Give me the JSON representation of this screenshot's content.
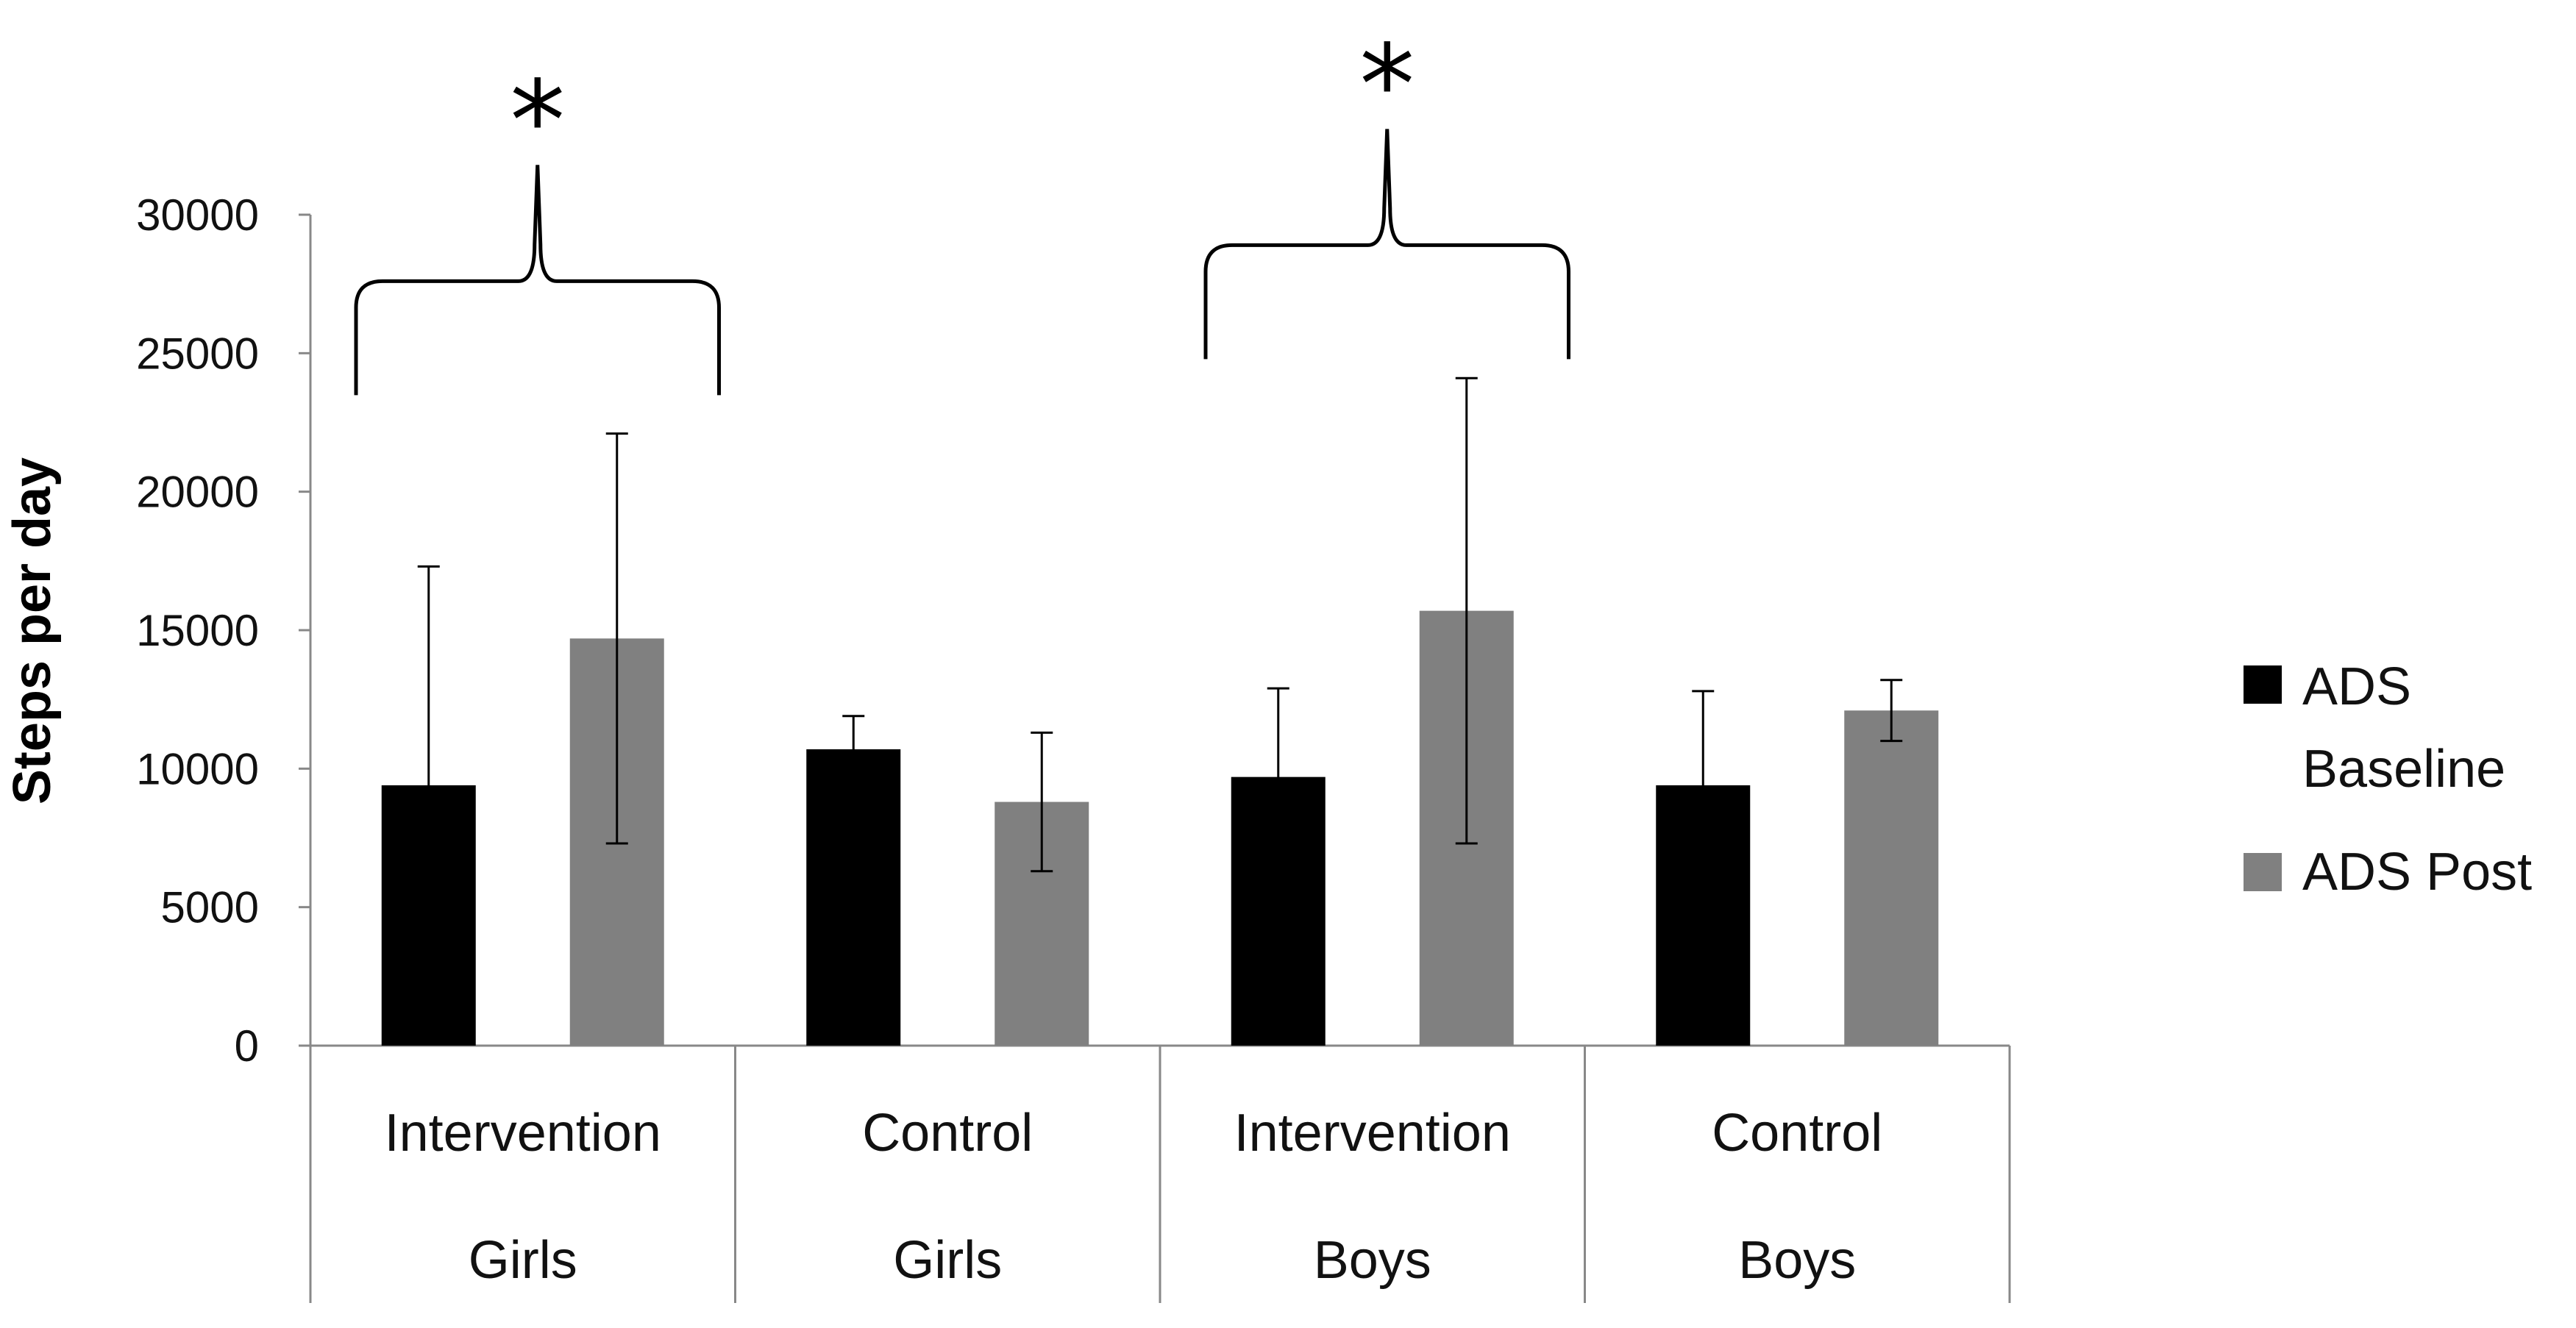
{
  "chart_data": {
    "type": "bar",
    "title": "",
    "xlabel": "",
    "ylabel": "Steps per day",
    "ylim": [
      0,
      30000
    ],
    "yticks": [
      0,
      5000,
      10000,
      15000,
      20000,
      25000,
      30000
    ],
    "categories": [
      {
        "group": "Intervention",
        "sub": "Girls"
      },
      {
        "group": "Control",
        "sub": "Girls"
      },
      {
        "group": "Intervention",
        "sub": "Boys"
      },
      {
        "group": "Control",
        "sub": "Boys"
      }
    ],
    "series": [
      {
        "name": "ADS Baseline",
        "color": "#000000",
        "values": [
          9400,
          10700,
          9700,
          9400
        ],
        "errors": [
          7900,
          1200,
          3200,
          3400
        ]
      },
      {
        "name": "ADS Post",
        "color": "#808080",
        "values": [
          14700,
          8800,
          15700,
          12100
        ],
        "errors": [
          7400,
          2500,
          8400,
          1100
        ]
      }
    ],
    "annotations": [
      {
        "text": "*",
        "spans_categories": [
          0
        ],
        "level": 27600
      },
      {
        "text": "*",
        "spans_categories": [
          2
        ],
        "level": 28900
      }
    ],
    "legend": {
      "placement": "right",
      "entries": [
        "ADS Baseline",
        "ADS Post"
      ]
    }
  }
}
